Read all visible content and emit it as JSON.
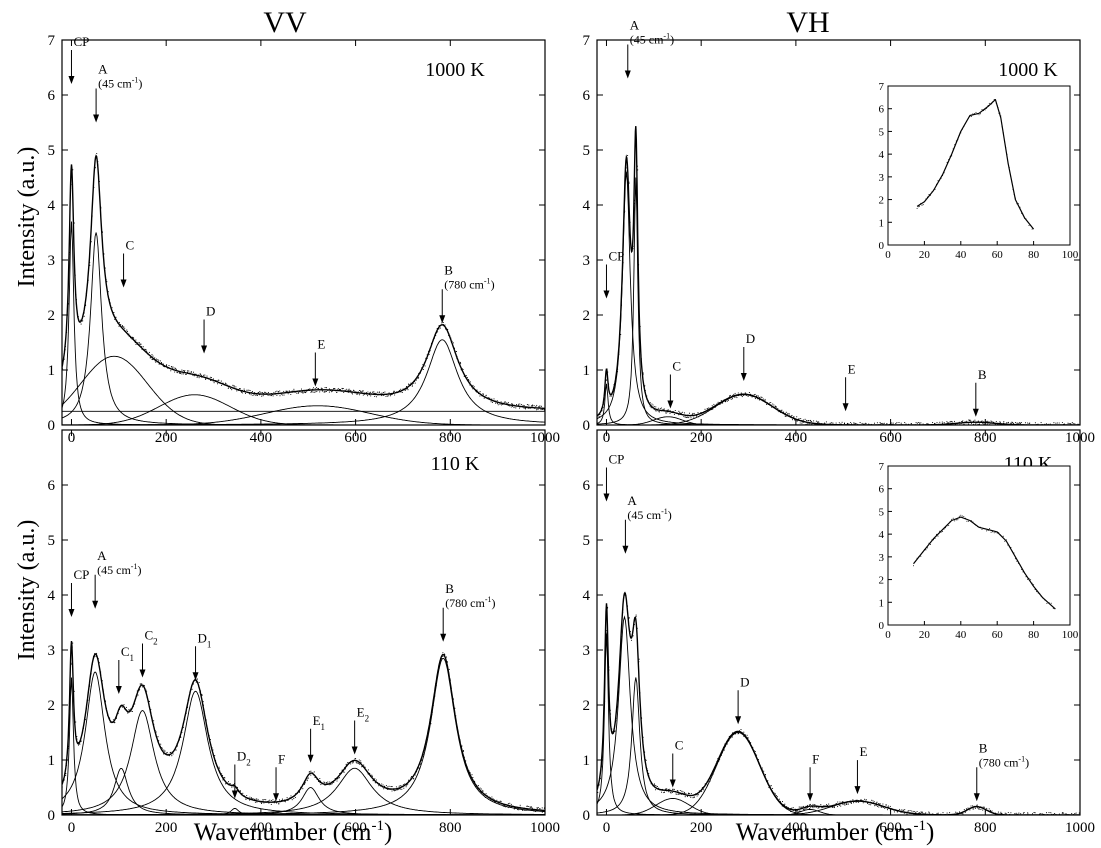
{
  "figure": {
    "col_titles": [
      "VV",
      "VH"
    ],
    "ylabel": "Intensity (a.u.)",
    "xlabel": "Wavenumber (cm",
    "xlabel_sup": "-1",
    "xlabel_end": ")"
  },
  "chart_data": [
    {
      "id": "vv_1000",
      "type": "line",
      "temperature": "1000 K",
      "xlim": [
        -20,
        1000
      ],
      "ylim": [
        0,
        7
      ],
      "xticks": [
        0,
        200,
        400,
        600,
        800,
        1000
      ],
      "yticks": [
        0,
        1,
        2,
        3,
        4,
        5,
        6,
        7
      ],
      "components": [
        {
          "type": "lorentz",
          "x0": 0,
          "amp": 3.7,
          "hwhm": 6
        },
        {
          "type": "lorentz",
          "x0": 52,
          "amp": 3.5,
          "hwhm": 14
        },
        {
          "type": "gauss",
          "x0": 90,
          "amp": 1.25,
          "sigma": 70
        },
        {
          "type": "gauss",
          "x0": 260,
          "amp": 0.55,
          "sigma": 75
        },
        {
          "type": "gauss",
          "x0": 520,
          "amp": 0.35,
          "sigma": 110
        },
        {
          "type": "lorentz",
          "x0": 783,
          "amp": 1.55,
          "hwhm": 40
        },
        {
          "type": "flat",
          "amp": 0.25
        }
      ],
      "annotations": [
        {
          "label": "CP",
          "x": 0,
          "y": 6.2
        },
        {
          "label": "A",
          "sub": "",
          "line2": "(45 cm",
          "line2_sup": "-1",
          "line2_end": ")",
          "x": 52,
          "y": 5.5
        },
        {
          "label": "C",
          "x": 110,
          "y": 2.5
        },
        {
          "label": "D",
          "x": 280,
          "y": 1.3
        },
        {
          "label": "E",
          "x": 515,
          "y": 0.7
        },
        {
          "label": "B",
          "line2": "(780 cm",
          "line2_sup": "-1",
          "line2_end": ")",
          "x": 783,
          "y": 1.85
        }
      ]
    },
    {
      "id": "vh_1000",
      "type": "line",
      "temperature": "1000 K",
      "xlim": [
        -20,
        1000
      ],
      "ylim": [
        0,
        7
      ],
      "xticks": [
        0,
        200,
        400,
        600,
        800,
        1000
      ],
      "yticks": [
        0,
        1,
        2,
        3,
        4,
        5,
        6,
        7
      ],
      "components": [
        {
          "type": "lorentz",
          "x0": 0,
          "amp": 0.75,
          "hwhm": 4
        },
        {
          "type": "lorentz",
          "x0": 42,
          "amp": 4.6,
          "hwhm": 10
        },
        {
          "type": "lorentz",
          "x0": 62,
          "amp": 4.5,
          "hwhm": 5
        },
        {
          "type": "gauss",
          "x0": 130,
          "amp": 0.15,
          "sigma": 30
        },
        {
          "type": "gauss",
          "x0": 290,
          "amp": 0.55,
          "sigma": 60
        },
        {
          "type": "gauss",
          "x0": 780,
          "amp": 0.05,
          "sigma": 40
        }
      ],
      "annotations": [
        {
          "label": "CP",
          "x": 0,
          "y": 2.3
        },
        {
          "label": "A",
          "line2": "(45 cm",
          "line2_sup": "-1",
          "line2_end": ")",
          "x": 45,
          "y": 6.3
        },
        {
          "label": "C",
          "x": 135,
          "y": 0.3
        },
        {
          "label": "D",
          "x": 290,
          "y": 0.8
        },
        {
          "label": "E",
          "x": 505,
          "y": 0.25
        },
        {
          "label": "B",
          "x": 780,
          "y": 0.15
        }
      ],
      "inset": {
        "xlim": [
          0,
          100
        ],
        "ylim": [
          0,
          7
        ],
        "xticks": [
          0,
          20,
          40,
          60,
          80,
          100
        ],
        "yticks": [
          0,
          1,
          2,
          3,
          4,
          5,
          6,
          7
        ],
        "x": [
          16,
          20,
          25,
          30,
          35,
          40,
          45,
          50,
          55,
          59,
          62,
          66,
          70,
          75,
          80
        ],
        "y": [
          1.7,
          1.9,
          2.4,
          3.1,
          4.0,
          5.0,
          5.7,
          5.8,
          6.1,
          6.4,
          5.6,
          3.6,
          2.0,
          1.2,
          0.7
        ]
      }
    },
    {
      "id": "vv_110",
      "type": "line",
      "temperature": "110 K",
      "xlim": [
        -20,
        1000
      ],
      "ylim": [
        0,
        7
      ],
      "xticks": [
        0,
        200,
        400,
        600,
        800,
        1000
      ],
      "yticks": [
        0,
        1,
        2,
        3,
        4,
        5,
        6,
        7
      ],
      "components": [
        {
          "type": "lorentz",
          "x0": 0,
          "amp": 2.5,
          "hwhm": 5
        },
        {
          "type": "lorentz",
          "x0": 50,
          "amp": 2.6,
          "hwhm": 25
        },
        {
          "type": "lorentz",
          "x0": 105,
          "amp": 0.85,
          "hwhm": 18
        },
        {
          "type": "lorentz",
          "x0": 150,
          "amp": 1.9,
          "hwhm": 30
        },
        {
          "type": "lorentz",
          "x0": 262,
          "amp": 2.25,
          "hwhm": 32
        },
        {
          "type": "lorentz",
          "x0": 345,
          "amp": 0.12,
          "hwhm": 10
        },
        {
          "type": "lorentz",
          "x0": 505,
          "amp": 0.5,
          "hwhm": 22
        },
        {
          "type": "lorentz",
          "x0": 598,
          "amp": 0.85,
          "hwhm": 45
        },
        {
          "type": "lorentz",
          "x0": 785,
          "amp": 2.85,
          "hwhm": 32
        }
      ],
      "annotations": [
        {
          "label": "CP",
          "x": 0,
          "y": 3.6
        },
        {
          "label": "A",
          "line2": "(45 cm",
          "line2_sup": "-1",
          "line2_end": ")",
          "x": 50,
          "y": 3.75
        },
        {
          "label": "C",
          "sub": "1",
          "x": 100,
          "y": 2.2
        },
        {
          "label": "C",
          "sub": "2",
          "x": 150,
          "y": 2.5
        },
        {
          "label": "D",
          "sub": "1",
          "x": 262,
          "y": 2.45
        },
        {
          "label": "D",
          "sub": "2",
          "x": 345,
          "y": 0.3
        },
        {
          "label": "F",
          "x": 432,
          "y": 0.25
        },
        {
          "label": "E",
          "sub": "1",
          "x": 505,
          "y": 0.95
        },
        {
          "label": "E",
          "sub": "2",
          "x": 598,
          "y": 1.1
        },
        {
          "label": "B",
          "line2": "(780 cm",
          "line2_sup": "-1",
          "line2_end": ")",
          "x": 785,
          "y": 3.15
        }
      ]
    },
    {
      "id": "vh_110",
      "type": "line",
      "temperature": "110 K",
      "xlim": [
        -20,
        1000
      ],
      "ylim": [
        0,
        7
      ],
      "xticks": [
        0,
        200,
        400,
        600,
        800,
        1000
      ],
      "yticks": [
        0,
        1,
        2,
        3,
        4,
        5,
        6,
        7
      ],
      "components": [
        {
          "type": "lorentz",
          "x0": 0,
          "amp": 3.3,
          "hwhm": 5
        },
        {
          "type": "lorentz",
          "x0": 38,
          "amp": 3.6,
          "hwhm": 15
        },
        {
          "type": "lorentz",
          "x0": 62,
          "amp": 2.5,
          "hwhm": 10
        },
        {
          "type": "gauss",
          "x0": 140,
          "amp": 0.3,
          "sigma": 35
        },
        {
          "type": "gauss",
          "x0": 278,
          "amp": 1.5,
          "sigma": 45
        },
        {
          "type": "gauss",
          "x0": 430,
          "amp": 0.1,
          "sigma": 20
        },
        {
          "type": "gauss",
          "x0": 530,
          "amp": 0.25,
          "sigma": 55
        },
        {
          "type": "gauss",
          "x0": 782,
          "amp": 0.15,
          "sigma": 20
        }
      ],
      "annotations": [
        {
          "label": "CP",
          "x": 0,
          "y": 5.7
        },
        {
          "label": "A",
          "line2": "(45 cm",
          "line2_sup": "-1",
          "line2_end": ")",
          "x": 40,
          "y": 4.75
        },
        {
          "label": "C",
          "x": 140,
          "y": 0.5
        },
        {
          "label": "D",
          "x": 278,
          "y": 1.65
        },
        {
          "label": "F",
          "x": 430,
          "y": 0.25
        },
        {
          "label": "E",
          "x": 530,
          "y": 0.38
        },
        {
          "label": "B",
          "line2": "(780 cm",
          "line2_sup": "-1",
          "line2_end": ")",
          "x": 782,
          "y": 0.25
        }
      ],
      "inset": {
        "xlim": [
          0,
          100
        ],
        "ylim": [
          0,
          7
        ],
        "xticks": [
          0,
          20,
          40,
          60,
          80,
          100
        ],
        "yticks": [
          0,
          1,
          2,
          3,
          4,
          5,
          6,
          7
        ],
        "x": [
          14,
          20,
          25,
          30,
          35,
          40,
          45,
          50,
          55,
          60,
          65,
          70,
          75,
          80,
          85,
          92
        ],
        "y": [
          2.7,
          3.3,
          3.8,
          4.2,
          4.6,
          4.75,
          4.6,
          4.3,
          4.2,
          4.1,
          3.7,
          3.0,
          2.3,
          1.7,
          1.2,
          0.7
        ]
      }
    }
  ]
}
